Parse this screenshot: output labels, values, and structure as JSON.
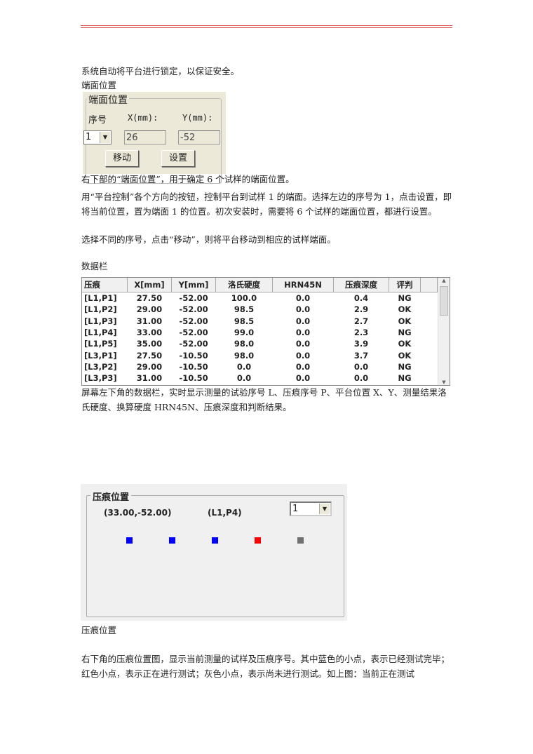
{
  "intro_line": "系统自动将平台进行锁定，以保证安全。",
  "section1_label": "端面位置",
  "endface_panel": {
    "legend": "端面位置",
    "index_label": "序号",
    "x_label": "X(mm):",
    "y_label": "Y(mm):",
    "index_value": "1",
    "x_value": "26",
    "y_value": "-52",
    "move_button": "移动",
    "set_button": "设置"
  },
  "para1": "右下部的“端面位置”，用于确定 6 个试样的端面位置。",
  "para2": "用“平台控制”各个方向的按钮，控制平台到试样 1 的端面。选择左边的序号为 1，点击设置，即将当前位置，置为端面 1 的位置。初次安装时，需要将 6 个试样的端面位置，都进行设置。",
  "para3": "选择不同的序号，点击“移动”，则将平台移动到相应的试样端面。",
  "section2_label": "数据栏",
  "data_table": {
    "headers": [
      "压痕",
      "X[mm]",
      "Y[mm]",
      "洛氏硬度",
      "HRN45N",
      "压痕深度",
      "评判"
    ],
    "rows": [
      [
        "[L1,P1]",
        "27.50",
        "-52.00",
        "100.0",
        "0.0",
        "0.4",
        "NG"
      ],
      [
        "[L1,P2]",
        "29.00",
        "-52.00",
        "98.5",
        "0.0",
        "2.9",
        "OK"
      ],
      [
        "[L1,P3]",
        "31.00",
        "-52.00",
        "98.5",
        "0.0",
        "2.7",
        "OK"
      ],
      [
        "[L1,P4]",
        "33.00",
        "-52.00",
        "99.0",
        "0.0",
        "2.3",
        "NG"
      ],
      [
        "[L1,P5]",
        "35.00",
        "-52.00",
        "98.0",
        "0.0",
        "3.9",
        "OK"
      ],
      [
        "[L3,P1]",
        "27.50",
        "-10.50",
        "98.0",
        "0.0",
        "3.7",
        "OK"
      ],
      [
        "[L3,P2]",
        "29.00",
        "-10.50",
        "0.0",
        "0.0",
        "0.0",
        "NG"
      ],
      [
        "[L3,P3]",
        "31.00",
        "-10.50",
        "0.0",
        "0.0",
        "0.0",
        "NG"
      ]
    ]
  },
  "para4": "屏幕左下角的数据栏，实时显示测量的试验序号 L、压痕序号 P、平台位置 X、Y、测量结果洛氏硬度、换算硬度 HRN45N、压痕深度和判断结果。",
  "indent_panel": {
    "legend": "压痕位置",
    "coords": "(33.00,-52.00)",
    "sample": "(L1,P4)",
    "select_value": "1",
    "dots": [
      {
        "status": "done",
        "color": "#0000ff"
      },
      {
        "status": "done",
        "color": "#0000ff"
      },
      {
        "status": "done",
        "color": "#0000ff"
      },
      {
        "status": "testing",
        "color": "#ff0000"
      },
      {
        "status": "pending",
        "color": "#707070"
      }
    ]
  },
  "caption": "压痕位置",
  "para5": "右下角的压痕位置图，显示当前测量的试样及压痕序号。其中蓝色的小点，表示已经测试完毕；红色小点，表示正在进行测试；灰色小点，表示尚未进行测试。如上图：当前正在测试"
}
